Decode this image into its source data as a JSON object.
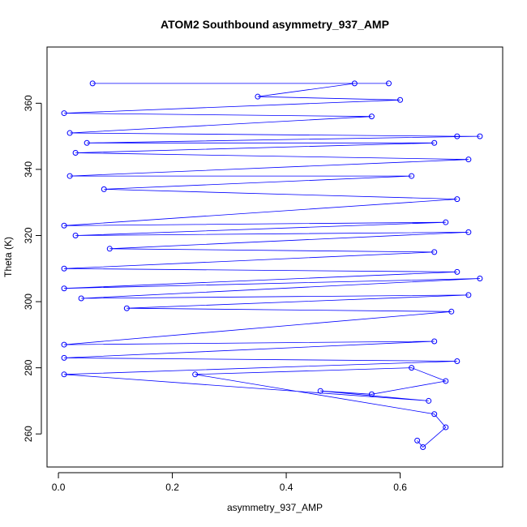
{
  "chart_data": {
    "type": "scatter",
    "title": "ATOM2 Southbound asymmetry_937_AMP",
    "xlabel": "asymmetry_937_AMP",
    "ylabel": "Theta (K)",
    "xlim": [
      -0.02,
      0.78
    ],
    "ylim": [
      250,
      377
    ],
    "x_ticks": [
      0.0,
      0.2,
      0.4,
      0.6
    ],
    "x_tick_labels": [
      "0.0",
      "0.2",
      "0.4",
      "0.6"
    ],
    "y_ticks": [
      260,
      280,
      300,
      320,
      340,
      360
    ],
    "y_tick_labels": [
      "260",
      "280",
      "300",
      "320",
      "340",
      "360"
    ],
    "grid": false,
    "marker": "open-circle",
    "connected_lines": true,
    "colors": {
      "series": "#0000ff",
      "axes": "#000000",
      "background": "#ffffff"
    },
    "series": [
      {
        "points": [
          [
            0.06,
            366
          ],
          [
            0.58,
            366
          ],
          [
            0.52,
            366
          ],
          [
            0.35,
            362
          ],
          [
            0.6,
            361
          ],
          [
            0.01,
            357
          ],
          [
            0.55,
            356
          ],
          [
            0.02,
            351
          ],
          [
            0.7,
            350
          ],
          [
            0.74,
            350
          ],
          [
            0.05,
            348
          ],
          [
            0.66,
            348
          ],
          [
            0.03,
            345
          ],
          [
            0.72,
            343
          ],
          [
            0.02,
            338
          ],
          [
            0.62,
            338
          ],
          [
            0.08,
            334
          ],
          [
            0.7,
            331
          ],
          [
            0.01,
            323
          ],
          [
            0.68,
            324
          ],
          [
            0.03,
            320
          ],
          [
            0.72,
            321
          ],
          [
            0.09,
            316
          ],
          [
            0.66,
            315
          ],
          [
            0.01,
            310
          ],
          [
            0.7,
            309
          ],
          [
            0.01,
            304
          ],
          [
            0.74,
            307
          ],
          [
            0.04,
            301
          ],
          [
            0.72,
            302
          ],
          [
            0.12,
            298
          ],
          [
            0.69,
            297
          ],
          [
            0.01,
            287
          ],
          [
            0.66,
            288
          ],
          [
            0.01,
            283
          ],
          [
            0.7,
            282
          ],
          [
            0.01,
            278
          ],
          [
            0.65,
            270
          ],
          [
            0.46,
            273
          ],
          [
            0.55,
            272
          ],
          [
            0.68,
            276
          ],
          [
            0.62,
            280
          ],
          [
            0.24,
            278
          ],
          [
            0.66,
            266
          ],
          [
            0.68,
            262
          ],
          [
            0.64,
            256
          ],
          [
            0.63,
            258
          ]
        ]
      }
    ]
  }
}
